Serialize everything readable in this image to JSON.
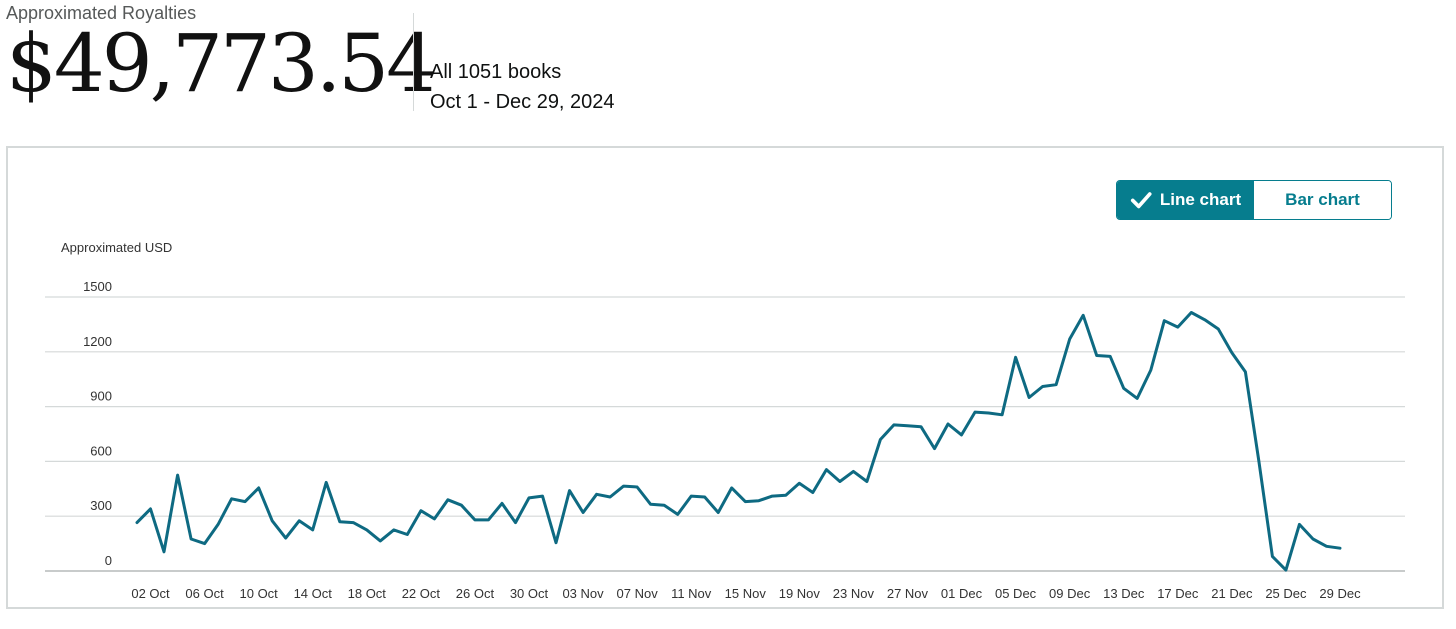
{
  "header": {
    "label": "Approximated Royalties",
    "total": "$49,773.54",
    "books": "All 1051 books",
    "date_range": "Oct 1 - Dec 29, 2024"
  },
  "toggle": {
    "line_label": "Line chart",
    "bar_label": "Bar chart",
    "selected": "line"
  },
  "colors": {
    "line": "#0e6a82",
    "accent": "#067d8e",
    "grid": "#d5d9d9"
  },
  "chart_data": {
    "type": "line",
    "ylabel": "Approximated USD",
    "ylim": [
      0,
      1500
    ],
    "yticks": [
      0,
      300,
      600,
      900,
      1200,
      1500
    ],
    "xtick_labels": [
      "02 Oct",
      "06 Oct",
      "10 Oct",
      "14 Oct",
      "18 Oct",
      "22 Oct",
      "26 Oct",
      "30 Oct",
      "03 Nov",
      "07 Nov",
      "11 Nov",
      "15 Nov",
      "19 Nov",
      "23 Nov",
      "27 Nov",
      "01 Dec",
      "05 Dec",
      "09 Dec",
      "13 Dec",
      "17 Dec",
      "21 Dec",
      "25 Dec",
      "29 Dec"
    ],
    "x_start": "2024-10-01",
    "x_end": "2024-12-29",
    "grid": true,
    "series": [
      {
        "values": [
          265,
          340,
          105,
          525,
          175,
          150,
          255,
          395,
          380,
          455,
          275,
          180,
          275,
          225,
          485,
          270,
          265,
          225,
          165,
          225,
          200,
          330,
          285,
          390,
          360,
          280,
          280,
          370,
          265,
          400,
          410,
          155,
          440,
          320,
          420,
          405,
          465,
          460,
          365,
          360,
          310,
          410,
          405,
          320,
          455,
          380,
          385,
          410,
          415,
          480,
          430,
          555,
          490,
          545,
          490,
          720,
          800,
          795,
          790,
          670,
          805,
          745,
          870,
          865,
          855,
          1170,
          950,
          1010,
          1020,
          1270,
          1400,
          1180,
          1175,
          1000,
          945,
          1100,
          1370,
          1335,
          1415,
          1375,
          1325,
          1195,
          1090,
          600,
          80,
          5,
          255,
          175,
          135,
          125
        ]
      }
    ]
  }
}
